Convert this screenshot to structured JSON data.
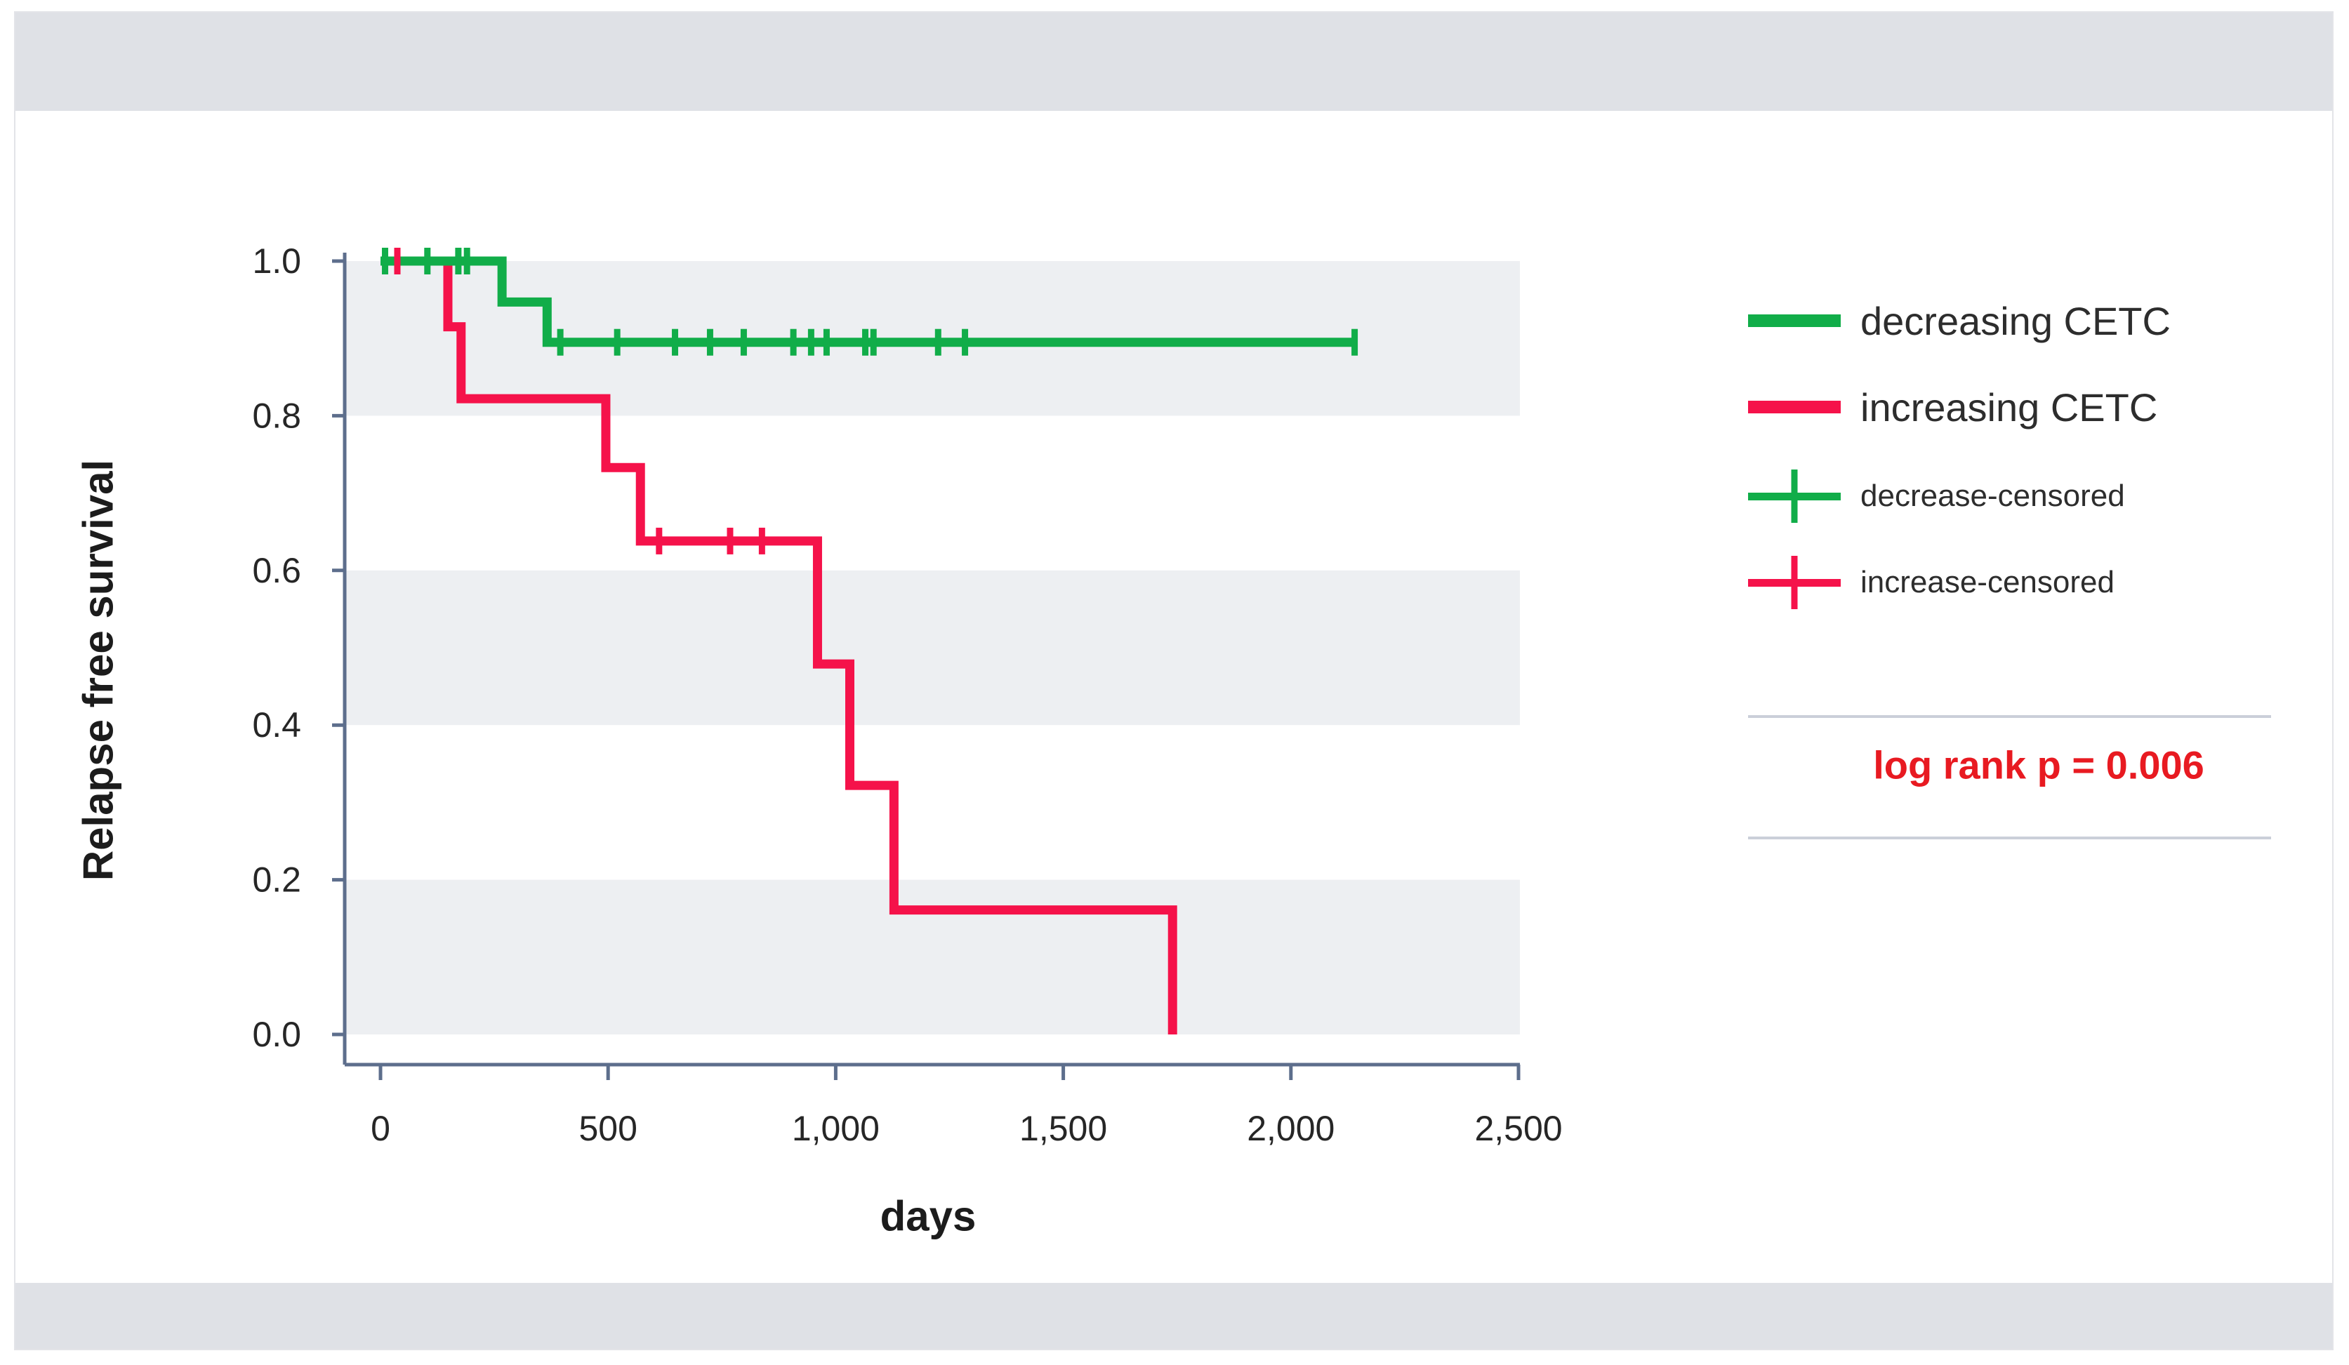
{
  "palette": {
    "decreasing_color": "#11ad49",
    "increasing_color": "#f5124a",
    "annotation_color": "#e81a21",
    "axis_color": "#5d6e8c",
    "band_color": "#edeff2",
    "header_footer_bar_color": "#dfe1e6"
  },
  "axes": {
    "y_title": "Relapse free survival",
    "x_title": "days"
  },
  "legend": {
    "entries": [
      {
        "label": "decreasing CETC",
        "swatch": "green-line"
      },
      {
        "label": "increasing CETC",
        "swatch": "red-line"
      },
      {
        "label": "decrease-censored",
        "swatch": "green-line-censor-tick"
      },
      {
        "label": "increase-censored",
        "swatch": "red-line-censor-tick"
      }
    ]
  },
  "stats": {
    "log_rank_label": "log rank p = 0.006"
  },
  "chart_data": {
    "type": "line",
    "subtype": "kaplan-meier-step-curve",
    "title": "",
    "xlabel": "days",
    "ylabel": "Relapse free survival",
    "xlim": [
      0,
      2500
    ],
    "ylim": [
      0.0,
      1.0
    ],
    "grid": "alternating horizontal gray bands (1.0-0.8, 0.6-0.4, 0.2-0.0)",
    "legend_position": "right",
    "x_ticks": {
      "values": [
        0,
        500,
        1000,
        1500,
        2000,
        2500
      ],
      "labels": [
        "0",
        "500",
        "1,000",
        "1,500",
        "2,000",
        "2,500"
      ]
    },
    "y_ticks": {
      "values": [
        1.0,
        0.8,
        0.6,
        0.4,
        0.2,
        0.0
      ],
      "labels": [
        "1.0",
        "0.8",
        "0.6",
        "0.4",
        "0.2",
        "0.0"
      ]
    },
    "annotation": "log rank p = 0.006",
    "series": [
      {
        "name": "decreasing CETC",
        "color": "#11ad49",
        "steps": [
          [
            0,
            1.0
          ],
          [
            267,
            1.0
          ],
          [
            267,
            0.947
          ],
          [
            366,
            0.947
          ],
          [
            366,
            0.895
          ],
          [
            2140,
            0.895
          ]
        ],
        "censored": [
          [
            10,
            1.0
          ],
          [
            103,
            1.0
          ],
          [
            171,
            1.0
          ],
          [
            190,
            1.0
          ],
          [
            395,
            0.895
          ],
          [
            520,
            0.895
          ],
          [
            647,
            0.895
          ],
          [
            724,
            0.895
          ],
          [
            798,
            0.895
          ],
          [
            907,
            0.895
          ],
          [
            946,
            0.895
          ],
          [
            980,
            0.895
          ],
          [
            1065,
            0.895
          ],
          [
            1083,
            0.895
          ],
          [
            1225,
            0.895
          ],
          [
            1284,
            0.895
          ],
          [
            2140,
            0.895
          ]
        ]
      },
      {
        "name": "increasing CETC",
        "color": "#f5124a",
        "steps": [
          [
            0,
            1.0
          ],
          [
            148,
            1.0
          ],
          [
            148,
            0.915
          ],
          [
            177,
            0.915
          ],
          [
            177,
            0.822
          ],
          [
            495,
            0.822
          ],
          [
            495,
            0.733
          ],
          [
            571,
            0.733
          ],
          [
            571,
            0.638
          ],
          [
            960,
            0.638
          ],
          [
            960,
            0.479
          ],
          [
            1031,
            0.479
          ],
          [
            1031,
            0.322
          ],
          [
            1128,
            0.322
          ],
          [
            1128,
            0.161
          ],
          [
            1740,
            0.161
          ],
          [
            1740,
            0.0
          ]
        ],
        "censored": [
          [
            37,
            1.0
          ],
          [
            612,
            0.638
          ],
          [
            768,
            0.638
          ],
          [
            838,
            0.638
          ]
        ]
      }
    ]
  }
}
